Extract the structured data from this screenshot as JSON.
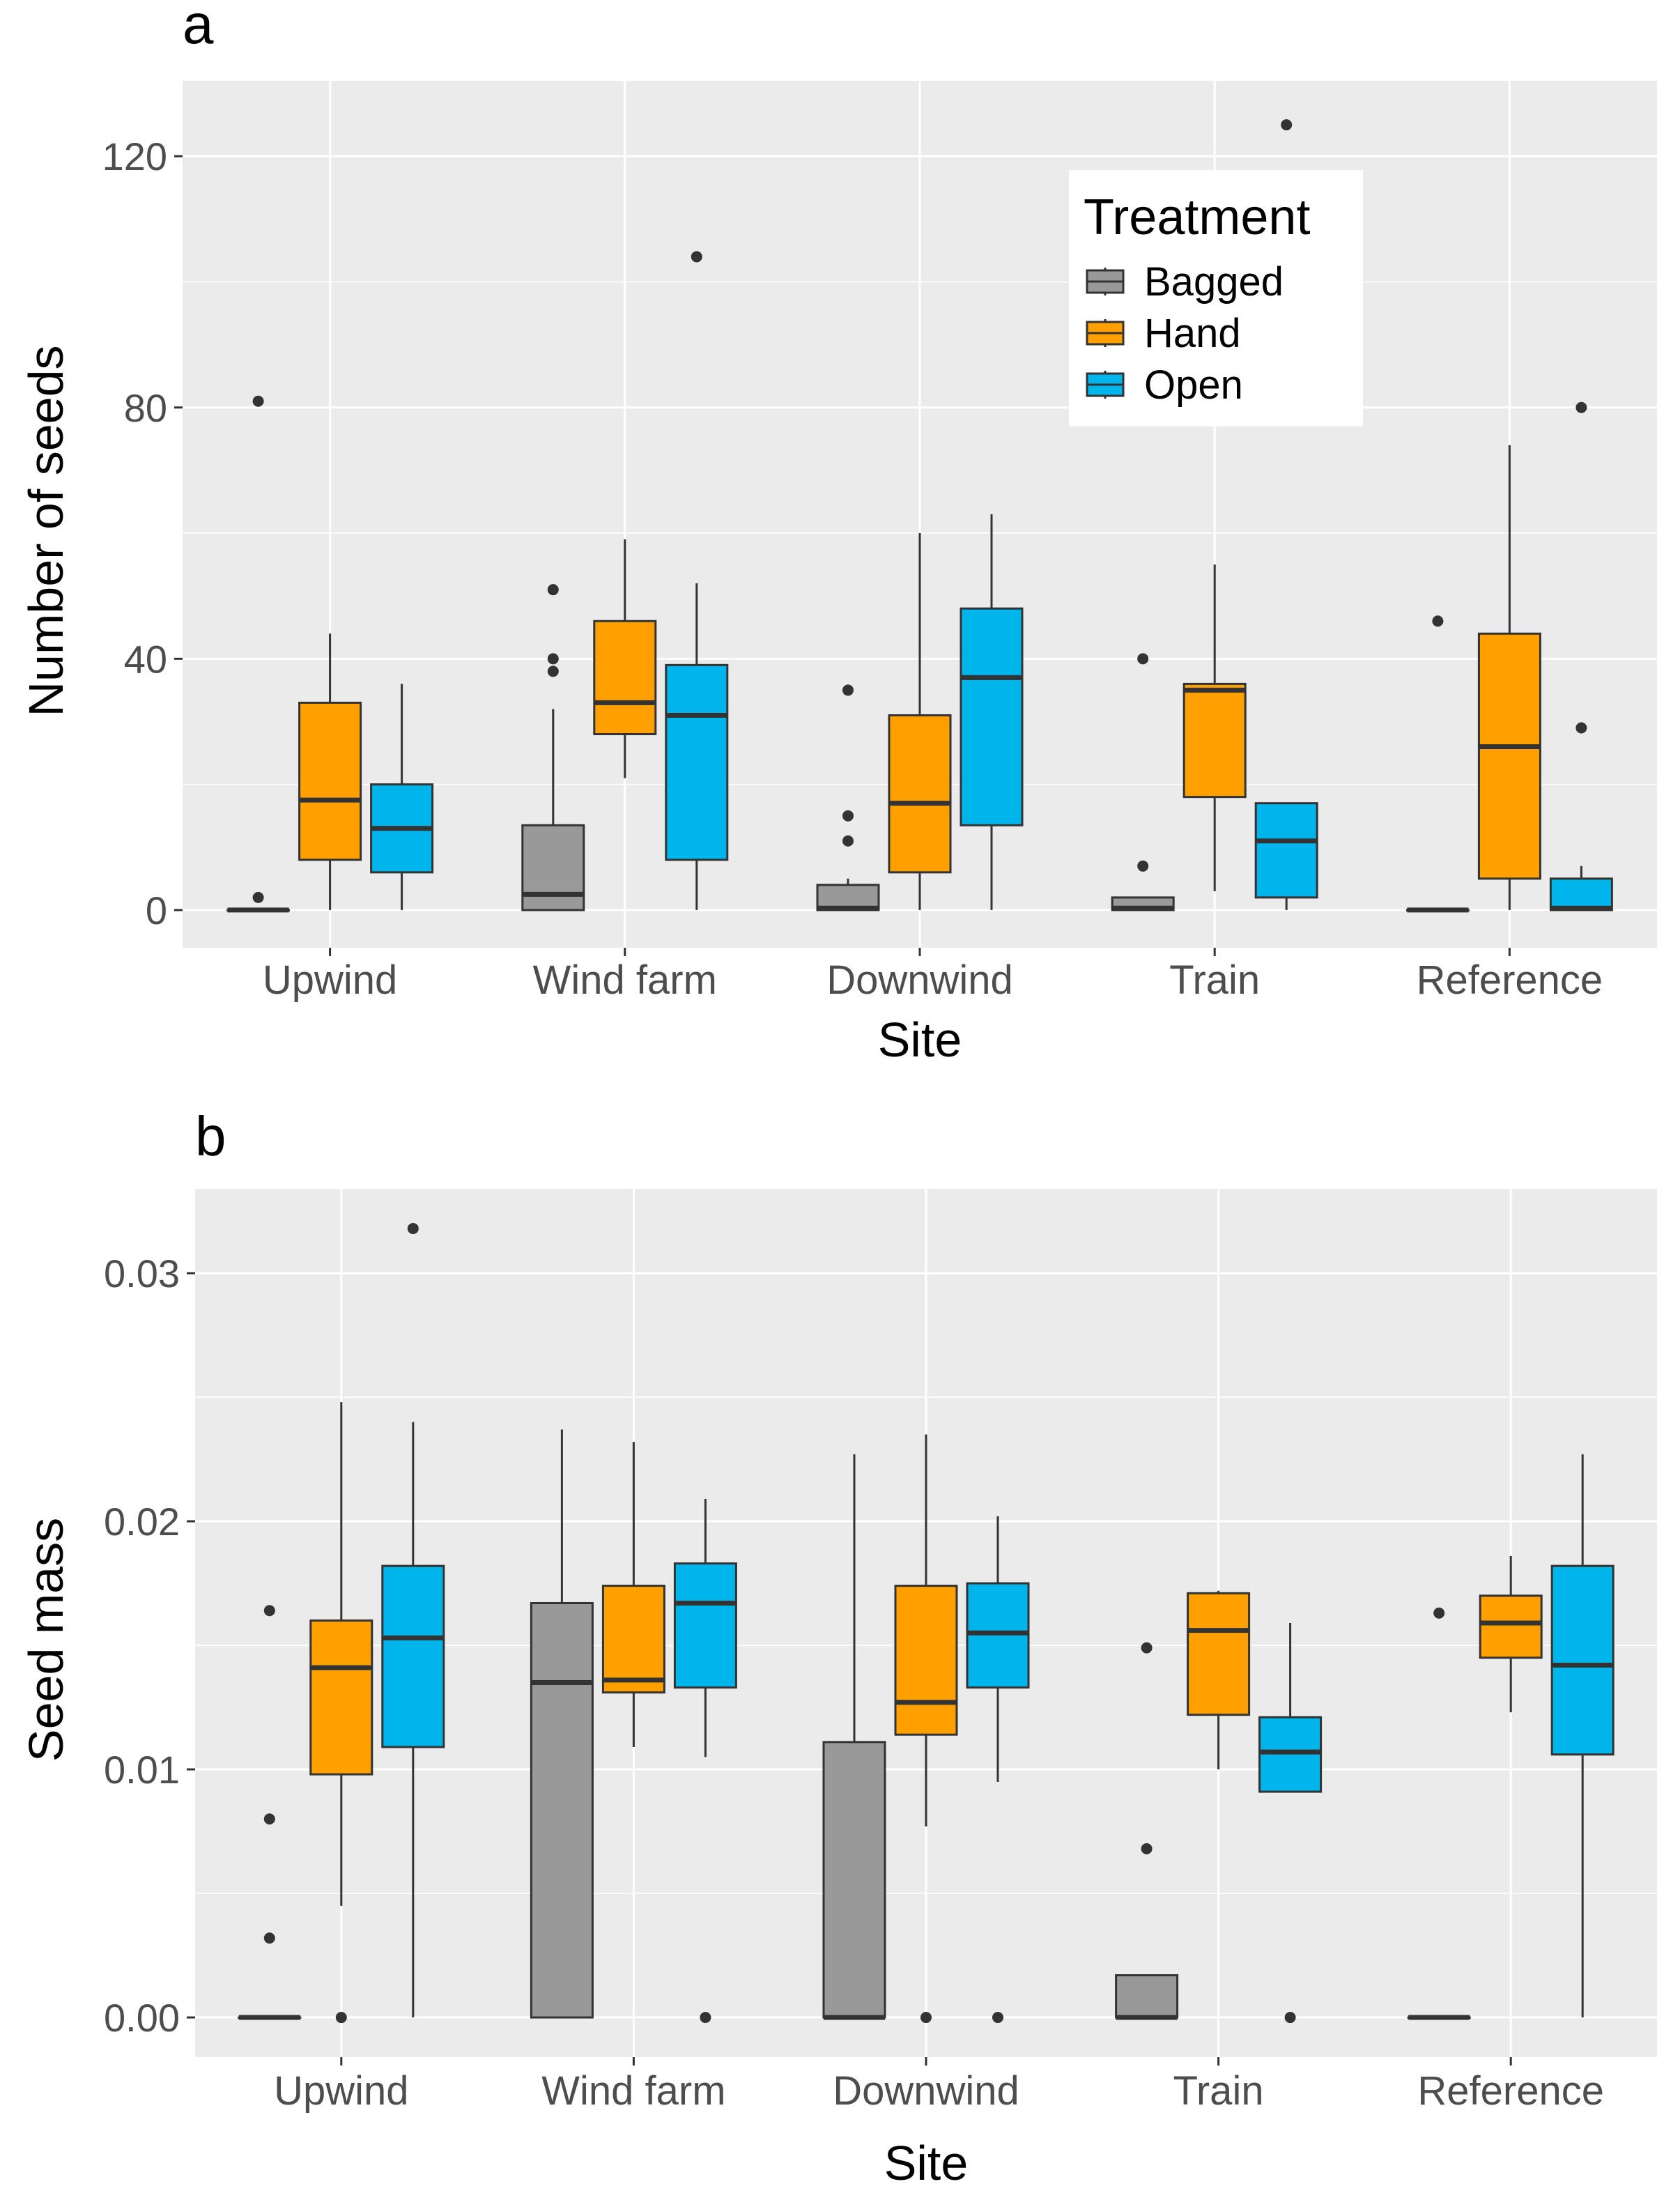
{
  "colors": {
    "panel_bg": "#EBEBEB",
    "grid": "#FFFFFF",
    "tick_text": "#4D4D4D",
    "Bagged": "#999999",
    "Hand": "#FFA000",
    "Open": "#00B4EC",
    "outline": "#333333"
  },
  "chart_data": [
    {
      "type": "boxplot",
      "panel_label": "a",
      "title": "",
      "xlabel": "Site",
      "ylabel": "Number of seeds",
      "categories": [
        "Upwind",
        "Wind farm",
        "Downwind",
        "Train",
        "Reference"
      ],
      "ylim": [
        -6,
        132
      ],
      "yticks": [
        0,
        40,
        80,
        120
      ],
      "ytick_labels": [
        "0",
        "40",
        "80",
        "120"
      ],
      "legend": {
        "title": "Treatment",
        "position": "top-right",
        "entries": [
          "Bagged",
          "Hand",
          "Open"
        ]
      },
      "series": [
        {
          "name": "Bagged",
          "boxes": [
            {
              "low": 0,
              "q1": 0,
              "median": 0,
              "q3": 0,
              "high": 0,
              "outliers": [
                2,
                81
              ]
            },
            {
              "low": 0,
              "q1": 0,
              "median": 2.5,
              "q3": 13.5,
              "high": 32,
              "outliers": [
                38,
                40,
                51
              ]
            },
            {
              "low": 0,
              "q1": 0,
              "median": 0.3,
              "q3": 4,
              "high": 5,
              "outliers": [
                11,
                15,
                35
              ]
            },
            {
              "low": 0,
              "q1": 0,
              "median": 0.3,
              "q3": 2,
              "high": 2,
              "outliers": [
                7,
                40
              ]
            },
            {
              "low": 0,
              "q1": 0,
              "median": 0,
              "q3": 0,
              "high": 0,
              "outliers": [
                46
              ]
            }
          ]
        },
        {
          "name": "Hand",
          "boxes": [
            {
              "low": 0,
              "q1": 8,
              "median": 17.5,
              "q3": 33,
              "high": 44,
              "outliers": []
            },
            {
              "low": 21,
              "q1": 28,
              "median": 33,
              "q3": 46,
              "high": 59,
              "outliers": []
            },
            {
              "low": 0,
              "q1": 6,
              "median": 17,
              "q3": 31,
              "high": 60,
              "outliers": []
            },
            {
              "low": 3,
              "q1": 18,
              "median": 35,
              "q3": 36,
              "high": 55,
              "outliers": []
            },
            {
              "low": 0,
              "q1": 5,
              "median": 26,
              "q3": 44,
              "high": 74,
              "outliers": []
            }
          ]
        },
        {
          "name": "Open",
          "boxes": [
            {
              "low": 0,
              "q1": 6,
              "median": 13,
              "q3": 20,
              "high": 36,
              "outliers": []
            },
            {
              "low": 0,
              "q1": 8,
              "median": 31,
              "q3": 39,
              "high": 52,
              "outliers": [
                104
              ]
            },
            {
              "low": 0,
              "q1": 13.5,
              "median": 37,
              "q3": 48,
              "high": 63,
              "outliers": []
            },
            {
              "low": 0,
              "q1": 2,
              "median": 11,
              "q3": 17,
              "high": 17,
              "outliers": [
                125
              ]
            },
            {
              "low": 0,
              "q1": 0,
              "median": 0.3,
              "q3": 5,
              "high": 7,
              "outliers": [
                29,
                80
              ]
            }
          ]
        }
      ]
    },
    {
      "type": "boxplot",
      "panel_label": "b",
      "title": "",
      "xlabel": "Site",
      "ylabel": "Seed mass",
      "categories": [
        "Upwind",
        "Wind farm",
        "Downwind",
        "Train",
        "Reference"
      ],
      "ylim": [
        -0.0016,
        0.0334
      ],
      "yticks": [
        0,
        0.01,
        0.02,
        0.03
      ],
      "ytick_labels": [
        "0.00",
        "0.01",
        "0.02",
        "0.03"
      ],
      "series": [
        {
          "name": "Bagged",
          "boxes": [
            {
              "low": 0,
              "q1": 0,
              "median": 0,
              "q3": 0,
              "high": 0,
              "outliers": [
                0.0032,
                0.008,
                0.0164
              ]
            },
            {
              "low": 0,
              "q1": 0,
              "median": 0.0135,
              "q3": 0.0167,
              "high": 0.0237,
              "outliers": []
            },
            {
              "low": 0,
              "q1": 0,
              "median": 0,
              "q3": 0.0111,
              "high": 0.0227,
              "outliers": []
            },
            {
              "low": 0,
              "q1": 0,
              "median": 0,
              "q3": 0.0017,
              "high": 0.0017,
              "outliers": [
                0.0068,
                0.0149
              ]
            },
            {
              "low": 0,
              "q1": 0,
              "median": 0,
              "q3": 0,
              "high": 0,
              "outliers": [
                0.0163
              ]
            }
          ]
        },
        {
          "name": "Hand",
          "boxes": [
            {
              "low": 0.0045,
              "q1": 0.0098,
              "median": 0.0141,
              "q3": 0.016,
              "high": 0.0248,
              "outliers": [
                0
              ]
            },
            {
              "low": 0.0109,
              "q1": 0.0131,
              "median": 0.0136,
              "q3": 0.0174,
              "high": 0.0232,
              "outliers": []
            },
            {
              "low": 0.0077,
              "q1": 0.0114,
              "median": 0.0127,
              "q3": 0.0174,
              "high": 0.0235,
              "outliers": [
                0
              ]
            },
            {
              "low": 0.01,
              "q1": 0.0122,
              "median": 0.0156,
              "q3": 0.0171,
              "high": 0.0172,
              "outliers": []
            },
            {
              "low": 0.0123,
              "q1": 0.0145,
              "median": 0.0159,
              "q3": 0.017,
              "high": 0.0186,
              "outliers": []
            }
          ]
        },
        {
          "name": "Open",
          "boxes": [
            {
              "low": 0,
              "q1": 0.0109,
              "median": 0.0153,
              "q3": 0.0182,
              "high": 0.024,
              "outliers": [
                0.0318
              ]
            },
            {
              "low": 0.0105,
              "q1": 0.0133,
              "median": 0.0167,
              "q3": 0.0183,
              "high": 0.0209,
              "outliers": [
                0
              ]
            },
            {
              "low": 0.0095,
              "q1": 0.0133,
              "median": 0.0155,
              "q3": 0.0175,
              "high": 0.0202,
              "outliers": [
                0
              ]
            },
            {
              "low": 0.0091,
              "q1": 0.0091,
              "median": 0.0107,
              "q3": 0.0121,
              "high": 0.0159,
              "outliers": [
                0
              ]
            },
            {
              "low": 0,
              "q1": 0.0106,
              "median": 0.0142,
              "q3": 0.0182,
              "high": 0.0227,
              "outliers": []
            }
          ]
        }
      ]
    }
  ]
}
